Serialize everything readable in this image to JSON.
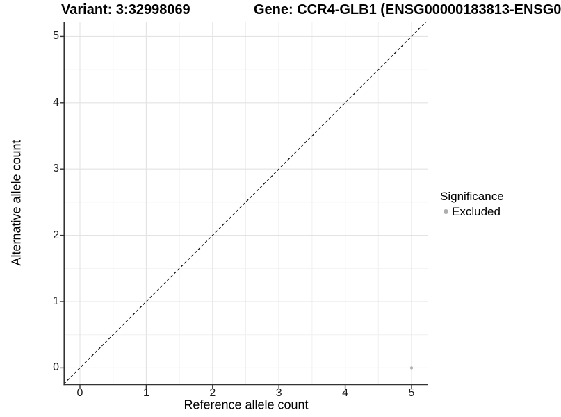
{
  "titles": {
    "variant": "Variant: 3:32998069",
    "gene": "Gene: CCR4-GLB1 (ENSG00000183813-ENSG0"
  },
  "chart_data": {
    "type": "scatter",
    "title_left": "Variant: 3:32998069",
    "title_right": "Gene: CCR4-GLB1 (ENSG00000183813-ENSG0",
    "xlabel": "Reference allele count",
    "ylabel": "Alternative allele count",
    "x_ticks": [
      0,
      1,
      2,
      3,
      4,
      5
    ],
    "y_ticks": [
      0,
      1,
      2,
      3,
      4,
      5
    ],
    "xlim": [
      -0.25,
      5.25
    ],
    "ylim": [
      -0.25,
      5.25
    ],
    "grid": {
      "major": true,
      "minor": true,
      "background": "#ffffff"
    },
    "points": [
      {
        "x": 5,
        "y": 0,
        "series": "Excluded"
      }
    ],
    "identity_line": {
      "slope": 1,
      "intercept": 0,
      "style": "dashed",
      "color": "#000000"
    },
    "legend": {
      "title": "Significance",
      "position": "right",
      "items": [
        {
          "label": "Excluded",
          "color": "#aeaeae",
          "marker": "circle"
        }
      ]
    },
    "colors": {
      "point": "#b2b2b2",
      "grid_major": "#e3e3e3",
      "grid_minor": "#f0f0f0",
      "axis_line": "#333333",
      "tick_mark": "#333333",
      "text": "#000000"
    }
  }
}
